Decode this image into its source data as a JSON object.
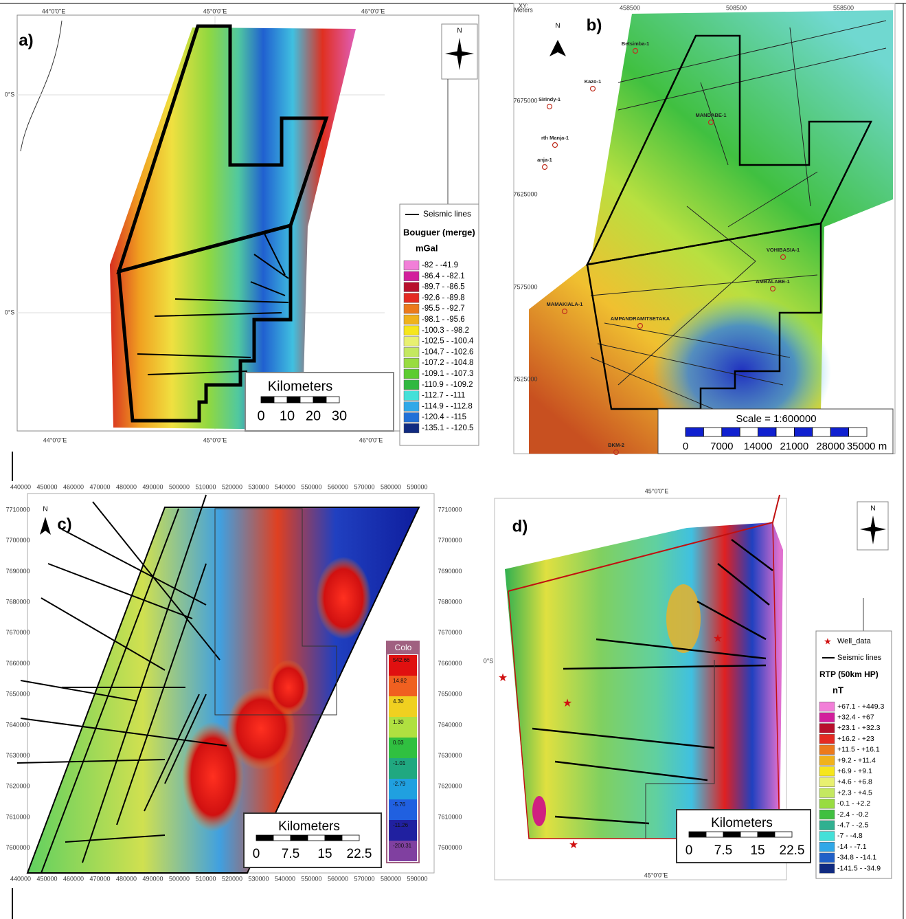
{
  "panel_a": {
    "label": "a)",
    "north": "N",
    "top_ticks": [
      "44°0'0\"E",
      "45°0'0\"E",
      "46°0'0\"E"
    ],
    "bottom_ticks": [
      "44°0'0\"E",
      "45°0'0\"E",
      "46°0'0\"E"
    ],
    "left_ticks": [
      "0°S",
      "0°S"
    ],
    "legend": {
      "line": "Seismic lines",
      "title": "Bouguer (merge)",
      "unit": "mGal",
      "classes": [
        {
          "label": "-82 - -41.9",
          "color": "#f27fd8"
        },
        {
          "label": "-86.4 - -82.1",
          "color": "#d21f9c"
        },
        {
          "label": "-89.7 - -86.5",
          "color": "#b8102c"
        },
        {
          "label": "-92.6 - -89.8",
          "color": "#e52a22"
        },
        {
          "label": "-95.5 - -92.7",
          "color": "#ec7a1c"
        },
        {
          "label": "-98.1 - -95.6",
          "color": "#f0b21c"
        },
        {
          "label": "-100.3 - -98.2",
          "color": "#f6e61c"
        },
        {
          "label": "-102.5 - -100.4",
          "color": "#e8f070"
        },
        {
          "label": "-104.7 - -102.6",
          "color": "#c4e860"
        },
        {
          "label": "-107.2 - -104.8",
          "color": "#98dc40"
        },
        {
          "label": "-109.1 - -107.3",
          "color": "#5ccc30"
        },
        {
          "label": "-110.9 - -109.2",
          "color": "#30b840"
        },
        {
          "label": "-112.7 - -111",
          "color": "#44e0d8"
        },
        {
          "label": "-114.9 - -112.8",
          "color": "#30a8e8"
        },
        {
          "label": "-120.4 - -115",
          "color": "#2070d8"
        },
        {
          "label": "-135.1 - -120.5",
          "color": "#102a80"
        }
      ]
    },
    "scale": {
      "title": "Kilometers",
      "ticks": [
        "0",
        "10",
        "20",
        "30"
      ]
    }
  },
  "panel_b": {
    "label": "b)",
    "north": "N",
    "corner": [
      "XY:",
      "Meters"
    ],
    "top_ticks": [
      "458500",
      "508500",
      "558500"
    ],
    "left_ticks": [
      "7675000",
      "7625000",
      "7575000",
      "7525000"
    ],
    "wells": [
      "Betsimba-1",
      "Kazo-1",
      "Sirindy-1",
      "rth Manja-1",
      "anja-1",
      "MANDABE-1",
      "VOHIBASIA-1",
      "AMBALABE-1",
      "MAMAKIALA-1",
      "AMPANDRAMITSETAKA",
      "BKM-2"
    ],
    "scale": {
      "title": "Scale = 1:600000",
      "ticks": [
        "0",
        "7000",
        "14000",
        "21000",
        "28000",
        "35000 m"
      ]
    }
  },
  "panel_c": {
    "label": "c)",
    "north": "N",
    "x_ticks": [
      "440000",
      "450000",
      "460000",
      "470000",
      "480000",
      "490000",
      "500000",
      "510000",
      "520000",
      "530000",
      "540000",
      "550000",
      "560000",
      "570000",
      "580000",
      "590000"
    ],
    "y_ticks": [
      "7710000",
      "7700000",
      "7690000",
      "7680000",
      "7670000",
      "7660000",
      "7650000",
      "7640000",
      "7630000",
      "7620000",
      "7610000",
      "7600000"
    ],
    "colorbar": {
      "title": "Colo",
      "classes": [
        {
          "label": "542.66",
          "color": "#e01010"
        },
        {
          "label": "14.82",
          "color": "#f06020"
        },
        {
          "label": "4.30",
          "color": "#f0d020"
        },
        {
          "label": "1.30",
          "color": "#b0e040"
        },
        {
          "label": "0.03",
          "color": "#30c040"
        },
        {
          "label": "-1.01",
          "color": "#20a880"
        },
        {
          "label": "-2.79",
          "color": "#20a0e0"
        },
        {
          "label": "-5.76",
          "color": "#2060e0"
        },
        {
          "label": "-11.26",
          "color": "#2020a0"
        },
        {
          "label": "-200.31",
          "color": "#8040a0"
        }
      ]
    },
    "scale": {
      "title": "Kilometers",
      "ticks": [
        "0",
        "7.5",
        "15",
        "22.5"
      ]
    }
  },
  "panel_d": {
    "label": "d)",
    "north": "N",
    "top_ticks": [
      "45°0'0\"E"
    ],
    "bottom_ticks": [
      "45°0'0\"E"
    ],
    "left_ticks": [
      "0°S"
    ],
    "legend": {
      "wells": "Well_data",
      "line": "Seismic lines",
      "title": "RTP (50km HP)",
      "unit": "nT",
      "classes": [
        {
          "label": "+67.1 - +449.3",
          "color": "#f27fd8"
        },
        {
          "label": "+32.4 - +67",
          "color": "#d21f9c"
        },
        {
          "label": "+23.1 - +32.3",
          "color": "#b8102c"
        },
        {
          "label": "+16.2 - +23",
          "color": "#e52a22"
        },
        {
          "label": "+11.5 - +16.1",
          "color": "#ec7a1c"
        },
        {
          "label": "+9.2 - +11.4",
          "color": "#f0b21c"
        },
        {
          "label": "+6.9 - +9.1",
          "color": "#f6e61c"
        },
        {
          "label": "+4.6 - +6.8",
          "color": "#e8f070"
        },
        {
          "label": "+2.3 - +4.5",
          "color": "#c4e860"
        },
        {
          "label": "-0.1 - +2.2",
          "color": "#98dc40"
        },
        {
          "label": "-2.4 - -0.2",
          "color": "#40c040"
        },
        {
          "label": "-4.7 - -2.5",
          "color": "#30b090"
        },
        {
          "label": "-7 - -4.8",
          "color": "#44e0d8"
        },
        {
          "label": "-14 - -7.1",
          "color": "#30a8e8"
        },
        {
          "label": "-34.8 - -14.1",
          "color": "#2060c8"
        },
        {
          "label": "-141.5 - -34.9",
          "color": "#102a80"
        }
      ]
    },
    "scale": {
      "title": "Kilometers",
      "ticks": [
        "0",
        "7.5",
        "15",
        "22.5"
      ]
    }
  }
}
